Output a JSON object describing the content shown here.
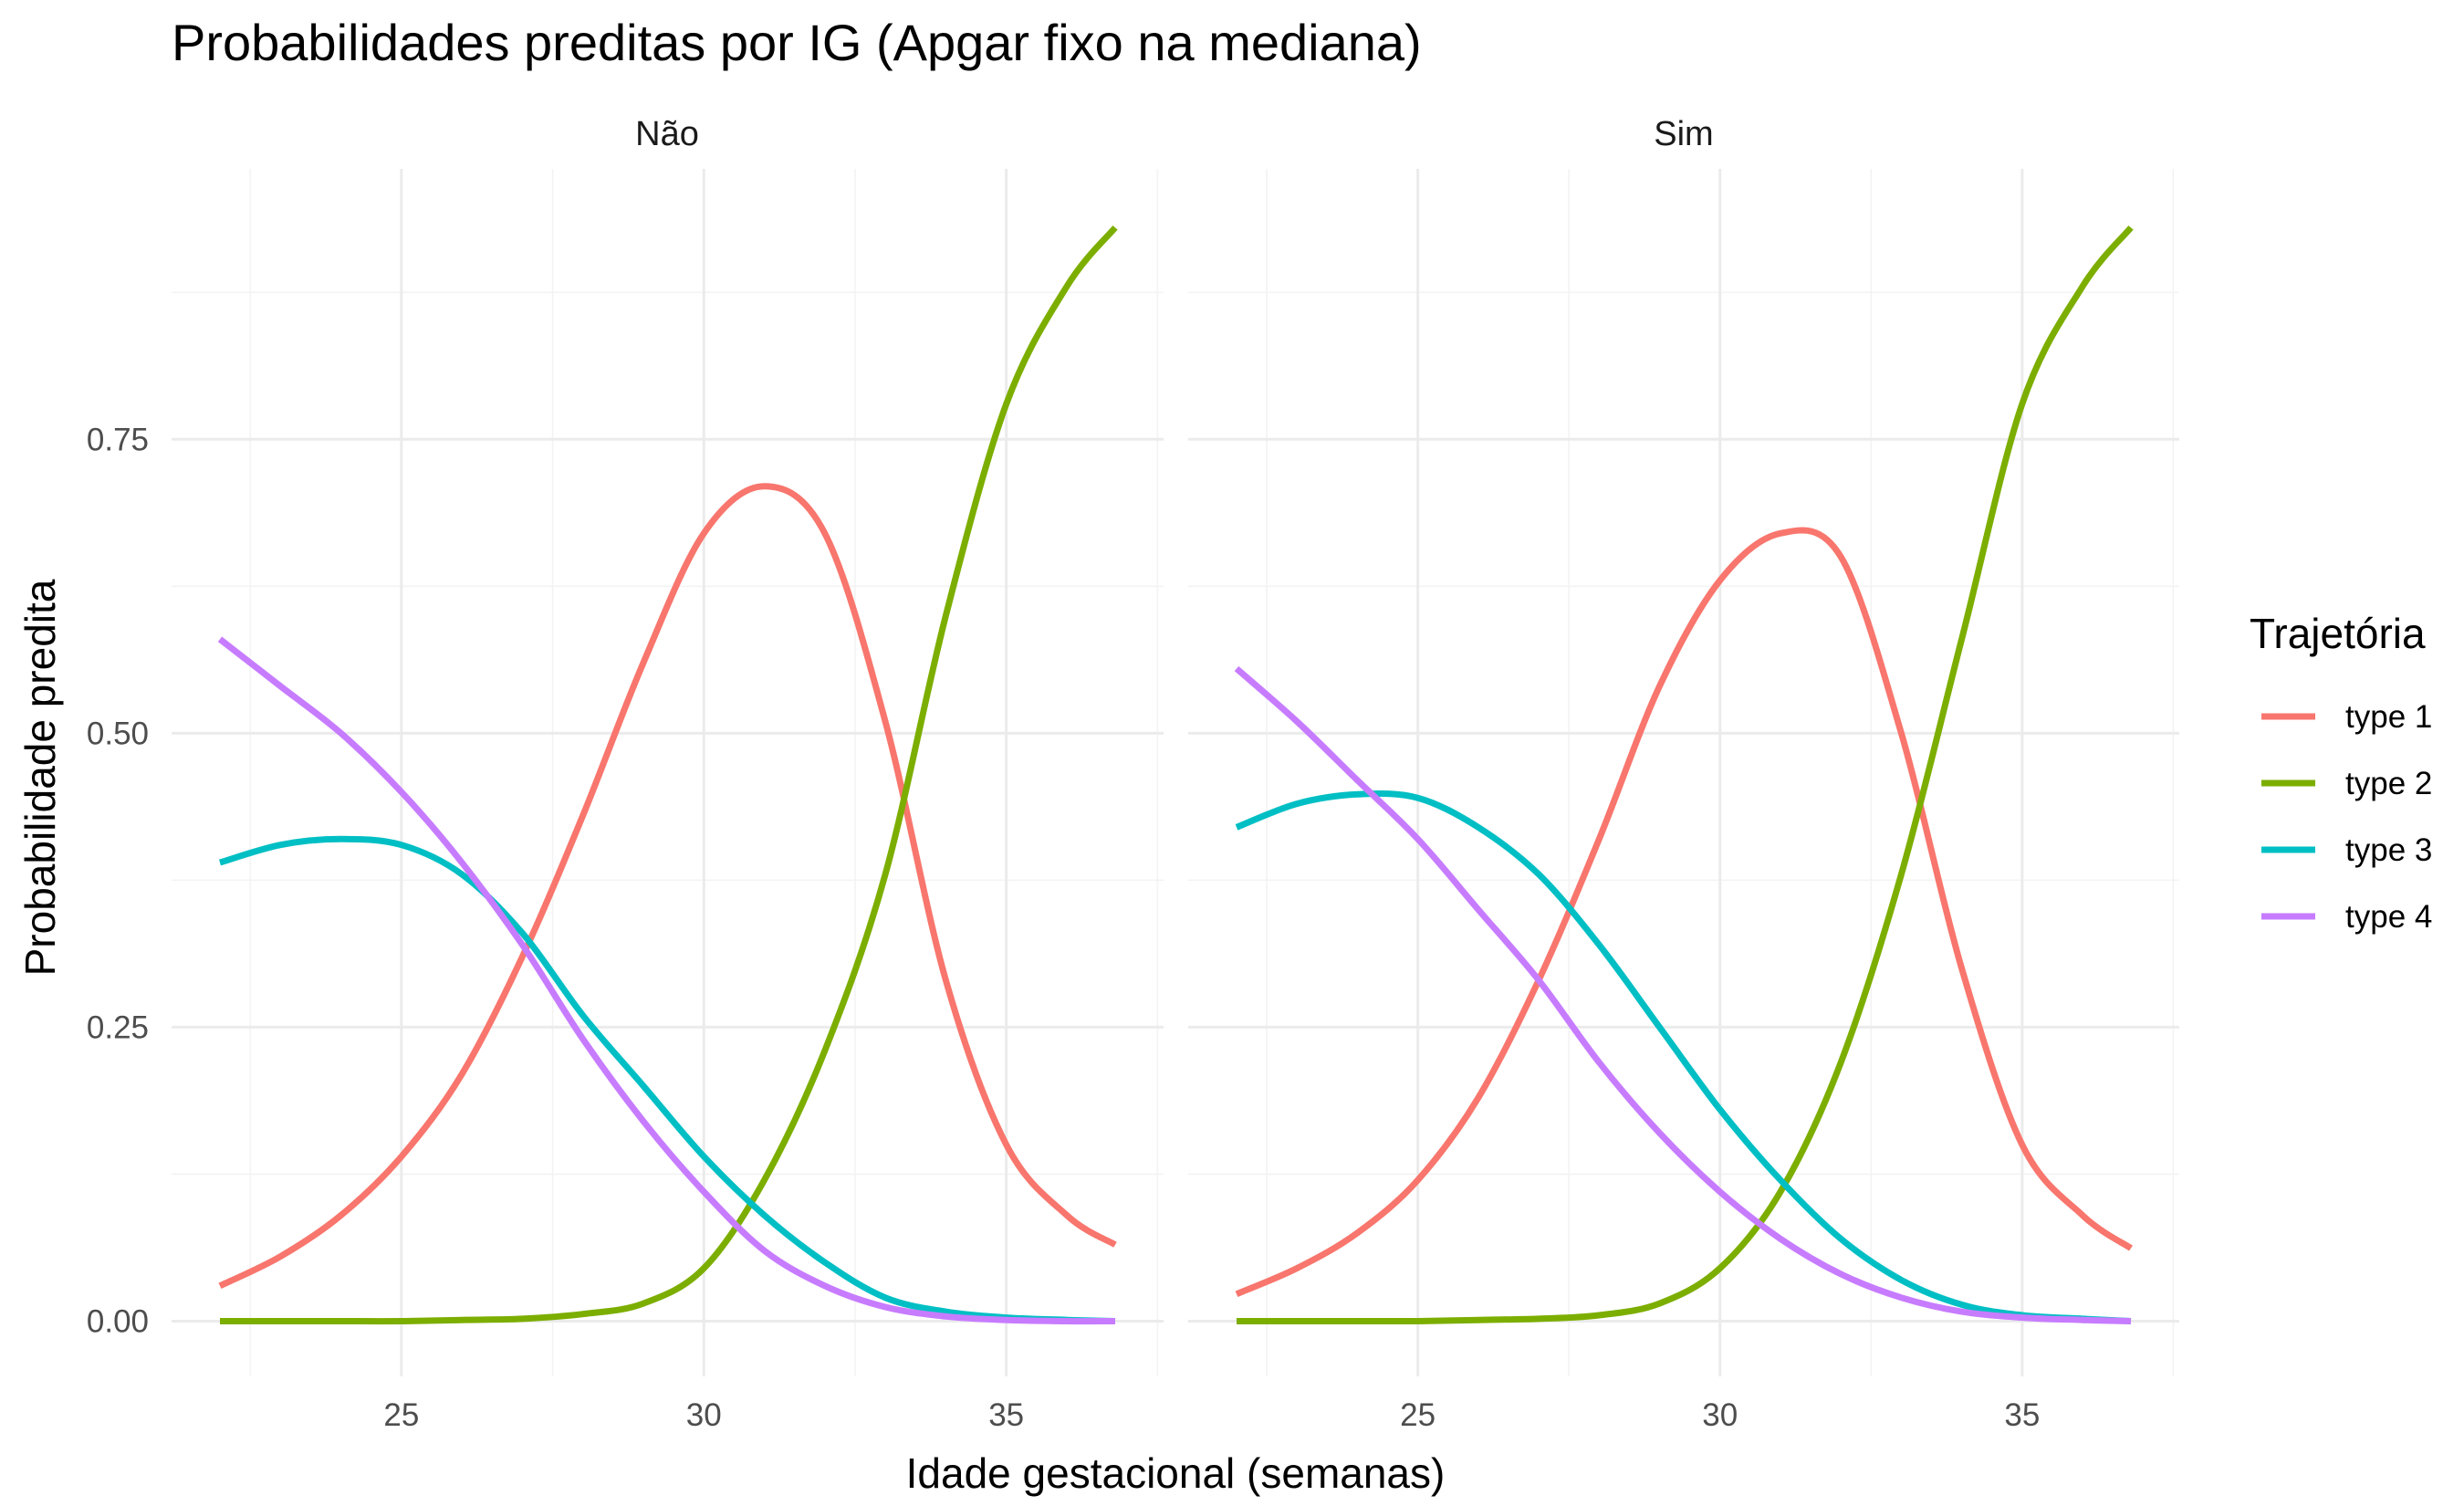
{
  "chart_data": {
    "type": "line",
    "title": "Probabilidades preditas por IG (Apgar fixo na mediana)",
    "xlabel": "Idade gestacional (semanas)",
    "ylabel": "Probabilidade predita",
    "xlim": [
      21.2,
      37.6
    ],
    "ylim": [
      -0.047,
      0.98
    ],
    "x_ticks": [
      25,
      30,
      35
    ],
    "x_tick_labels": [
      "25",
      "30",
      "35"
    ],
    "y_ticks": [
      0,
      0.25,
      0.5,
      0.75
    ],
    "y_tick_labels": [
      "0.00",
      "0.25",
      "0.50",
      "0.75"
    ],
    "grid": true,
    "legend": {
      "title": "Trajetória",
      "position": "right",
      "entries": [
        "type 1",
        "type 2",
        "type 3",
        "type 4"
      ]
    },
    "colors": {
      "type 1": "#F8766D",
      "type 2": "#7CAE00",
      "type 3": "#00BFC4",
      "type 4": "#C77CFF"
    },
    "x": [
      22,
      23,
      24,
      25,
      26,
      27,
      28,
      29,
      30,
      31,
      32,
      33,
      34,
      35,
      36,
      36.8
    ],
    "panels": [
      {
        "strip_label": "Não",
        "series": [
          {
            "name": "type 1",
            "values": [
              0.03,
              0.055,
              0.09,
              0.14,
              0.21,
              0.31,
              0.43,
              0.56,
              0.67,
              0.71,
              0.67,
              0.51,
              0.29,
              0.15,
              0.09,
              0.065
            ]
          },
          {
            "name": "type 2",
            "values": [
              0.0,
              0.0,
              0.0,
              0.0,
              0.001,
              0.002,
              0.006,
              0.015,
              0.045,
              0.12,
              0.23,
              0.38,
              0.6,
              0.78,
              0.88,
              0.93
            ]
          },
          {
            "name": "type 3",
            "values": [
              0.39,
              0.405,
              0.41,
              0.405,
              0.38,
              0.33,
              0.26,
              0.2,
              0.14,
              0.09,
              0.05,
              0.02,
              0.008,
              0.003,
              0.001,
              0.0
            ]
          },
          {
            "name": "type 4",
            "values": [
              0.58,
              0.54,
              0.5,
              0.45,
              0.39,
              0.32,
              0.24,
              0.17,
              0.11,
              0.06,
              0.03,
              0.012,
              0.004,
              0.001,
              0.0,
              0.0
            ]
          }
        ]
      },
      {
        "strip_label": "Sim",
        "series": [
          {
            "name": "type 1",
            "values": [
              0.023,
              0.045,
              0.075,
              0.12,
              0.19,
              0.29,
              0.41,
              0.54,
              0.63,
              0.67,
              0.65,
              0.5,
              0.3,
              0.15,
              0.09,
              0.062
            ]
          },
          {
            "name": "type 2",
            "values": [
              0.0,
              0.0,
              0.0,
              0.0,
              0.001,
              0.002,
              0.005,
              0.015,
              0.045,
              0.11,
              0.22,
              0.38,
              0.58,
              0.78,
              0.88,
              0.93
            ]
          },
          {
            "name": "type 3",
            "values": [
              0.42,
              0.44,
              0.448,
              0.445,
              0.42,
              0.38,
              0.32,
              0.25,
              0.18,
              0.12,
              0.07,
              0.035,
              0.014,
              0.005,
              0.002,
              0.0
            ]
          },
          {
            "name": "type 4",
            "values": [
              0.555,
              0.51,
              0.46,
              0.41,
              0.35,
              0.29,
              0.22,
              0.16,
              0.11,
              0.07,
              0.04,
              0.02,
              0.008,
              0.003,
              0.001,
              0.0
            ]
          }
        ]
      }
    ]
  }
}
